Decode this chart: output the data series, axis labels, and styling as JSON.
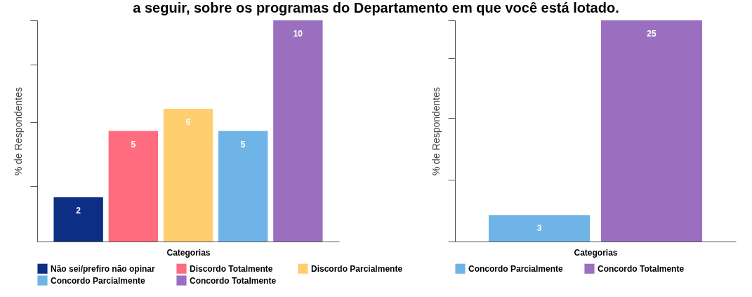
{
  "chart_data": [
    {
      "type": "bar",
      "title": "a seguir, sobre os programas do Departamento em que você está lotado.",
      "xlabel": "Categorias",
      "ylabel": "% de Respondentes",
      "categories": [
        null,
        null,
        null,
        null,
        null
      ],
      "series": [
        {
          "name": "Não sei/prefiro não opinar",
          "color": "#0c2e84",
          "values": [
            2,
            null,
            null,
            null,
            null
          ]
        },
        {
          "name": "Discordo Totalmente",
          "color": "#ff6b7f",
          "values": [
            null,
            5,
            null,
            null,
            null
          ]
        },
        {
          "name": "Discordo Parcialmente",
          "color": "#ffce6e",
          "values": [
            null,
            null,
            6,
            null,
            null
          ]
        },
        {
          "name": "Concordo Parcialmente",
          "color": "#6fb4e6",
          "values": [
            null,
            null,
            null,
            5,
            null
          ]
        },
        {
          "name": "Concordo Totalmente",
          "color": "#9b6fc0",
          "values": [
            null,
            null,
            null,
            null,
            10
          ]
        }
      ],
      "stacked": true,
      "ylim": [
        0,
        10
      ],
      "yticks": [
        {
          "value": 2.5,
          "label": null
        },
        {
          "value": 5.4,
          "label": null
        },
        {
          "value": 8,
          "label": null
        },
        {
          "value": 10,
          "label": null
        }
      ],
      "data_labels": true,
      "legend": "bottom"
    },
    {
      "type": "bar",
      "xlabel": "Categorias",
      "ylabel": "% de Respondentes",
      "categories": [
        null,
        null
      ],
      "series": [
        {
          "name": "Concordo Parcialmente",
          "color": "#6fb4e6",
          "values": [
            3,
            null
          ]
        },
        {
          "name": "Concordo Totalmente",
          "color": "#9b6fc0",
          "values": [
            null,
            25
          ]
        }
      ],
      "stacked": true,
      "ylim": [
        0,
        25
      ],
      "yticks": [
        {
          "value": 0,
          "label": null
        },
        {
          "value": 7,
          "label": null
        },
        {
          "value": 14,
          "label": null
        },
        {
          "value": 20.7,
          "label": null
        },
        {
          "value": 25,
          "label": null
        }
      ],
      "data_labels": true,
      "legend": "bottom"
    }
  ]
}
